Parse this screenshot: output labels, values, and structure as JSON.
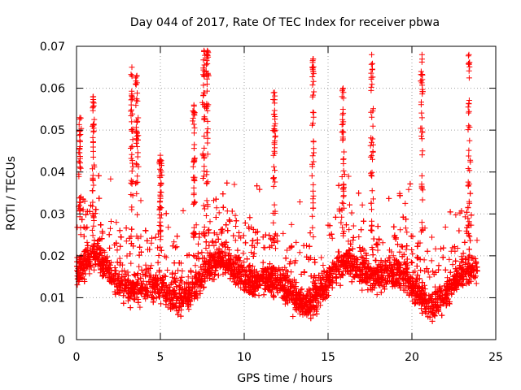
{
  "chart_data": {
    "type": "scatter",
    "title": "Day 044 of 2017, Rate Of TEC Index for receiver pbwa",
    "xlabel": "GPS time / hours",
    "ylabel": "ROTI / TECUs",
    "xlim": [
      0,
      25
    ],
    "ylim": [
      0,
      0.07
    ],
    "xticks": [
      0,
      5,
      10,
      15,
      20,
      25
    ],
    "xtick_labels": [
      "0",
      "5",
      "10",
      "15",
      "20",
      "25"
    ],
    "yticks": [
      0,
      0.01,
      0.02,
      0.03,
      0.04,
      0.05,
      0.06,
      0.07
    ],
    "ytick_labels": [
      "0",
      "0.01",
      "0.02",
      "0.03",
      "0.04",
      "0.05",
      "0.06",
      "0.07"
    ],
    "grid": true,
    "marker": "+",
    "color": "#ff0000",
    "series": [
      {
        "name": "ROTI",
        "x_range": [
          0,
          23.9
        ],
        "baseline": 0.014,
        "typical_spread": [
          0.005,
          0.03
        ],
        "peaks": [
          {
            "x": 0.2,
            "y": 0.053
          },
          {
            "x": 1.0,
            "y": 0.058
          },
          {
            "x": 3.3,
            "y": 0.065
          },
          {
            "x": 3.6,
            "y": 0.063
          },
          {
            "x": 5.0,
            "y": 0.044
          },
          {
            "x": 7.0,
            "y": 0.056
          },
          {
            "x": 7.6,
            "y": 0.069
          },
          {
            "x": 7.8,
            "y": 0.069
          },
          {
            "x": 11.8,
            "y": 0.059
          },
          {
            "x": 14.1,
            "y": 0.067
          },
          {
            "x": 15.9,
            "y": 0.06
          },
          {
            "x": 17.6,
            "y": 0.068
          },
          {
            "x": 20.6,
            "y": 0.068
          },
          {
            "x": 23.4,
            "y": 0.068
          }
        ]
      }
    ]
  }
}
